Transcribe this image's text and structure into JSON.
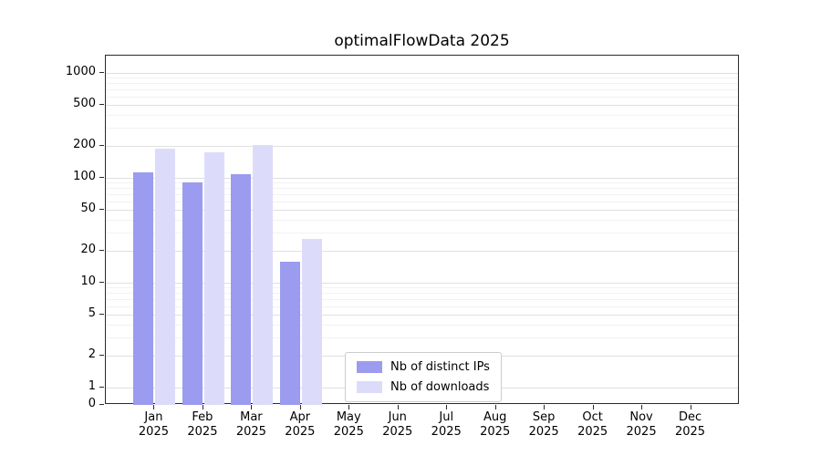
{
  "title": "optimalFlowData 2025",
  "chart_data": {
    "type": "bar",
    "title": "optimalFlowData 2025",
    "categories": [
      "Jan",
      "Feb",
      "Mar",
      "Apr",
      "May",
      "Jun",
      "Jul",
      "Aug",
      "Sep",
      "Oct",
      "Nov",
      "Dec"
    ],
    "category_year": "2025",
    "series": [
      {
        "name": "Nb of distinct IPs",
        "color": "#9b9bf0",
        "values": [
          113,
          90,
          108,
          16,
          0,
          0,
          0,
          0,
          0,
          0,
          0,
          0
        ]
      },
      {
        "name": "Nb of downloads",
        "color": "#dcdcfa",
        "values": [
          190,
          175,
          205,
          26,
          0,
          0,
          0,
          0,
          0,
          0,
          0,
          0
        ]
      }
    ],
    "xlabel": "",
    "ylabel": "",
    "yscale": "symlog",
    "yticks": [
      0,
      1,
      2,
      5,
      10,
      20,
      50,
      100,
      200,
      500,
      1000
    ],
    "ylim": [
      0,
      1400
    ],
    "grid": true,
    "legend_position": "lower center"
  }
}
